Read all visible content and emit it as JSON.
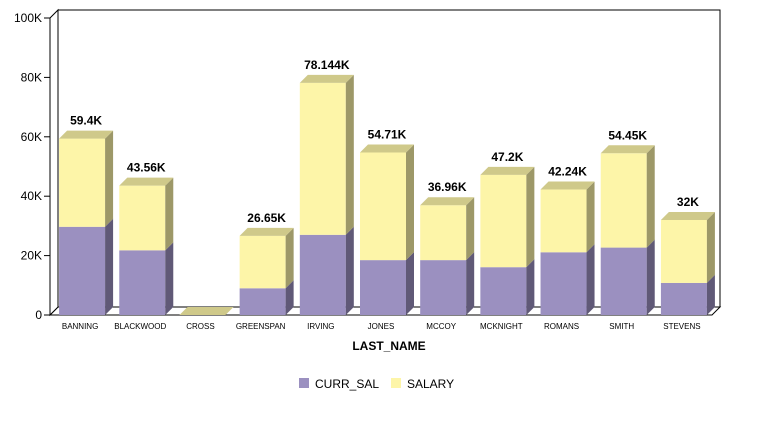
{
  "chart_data": {
    "type": "bar",
    "stacked": true,
    "style": "3d",
    "categories": [
      "BANNING",
      "BLACKWOOD",
      "CROSS",
      "GREENSPAN",
      "IRVING",
      "JONES",
      "MCCOY",
      "MCKNIGHT",
      "ROMANS",
      "SMITH",
      "STEVENS"
    ],
    "series": [
      {
        "name": "CURR_SAL",
        "color": "#9b90c0",
        "values": [
          29700,
          21780,
          0,
          9000,
          27000,
          18480,
          18480,
          16100,
          21120,
          22700,
          10800
        ]
      },
      {
        "name": "SALARY",
        "color": "#fdf5a8",
        "values": [
          29700,
          21780,
          0,
          17650,
          51144,
          36230,
          18480,
          31100,
          21120,
          31750,
          21200
        ]
      }
    ],
    "totals_labels": [
      "59.4K",
      "43.56K",
      "",
      "26.65K",
      "78.144K",
      "54.71K",
      "36.96K",
      "47.2K",
      "42.24K",
      "54.45K",
      "32K"
    ],
    "xlabel": "LAST_NAME",
    "ylabel": "",
    "ylim": [
      0,
      100000
    ],
    "yticks": [
      "0",
      "20K",
      "40K",
      "60K",
      "80K",
      "100K"
    ],
    "legend_position": "bottom",
    "grid": false
  }
}
